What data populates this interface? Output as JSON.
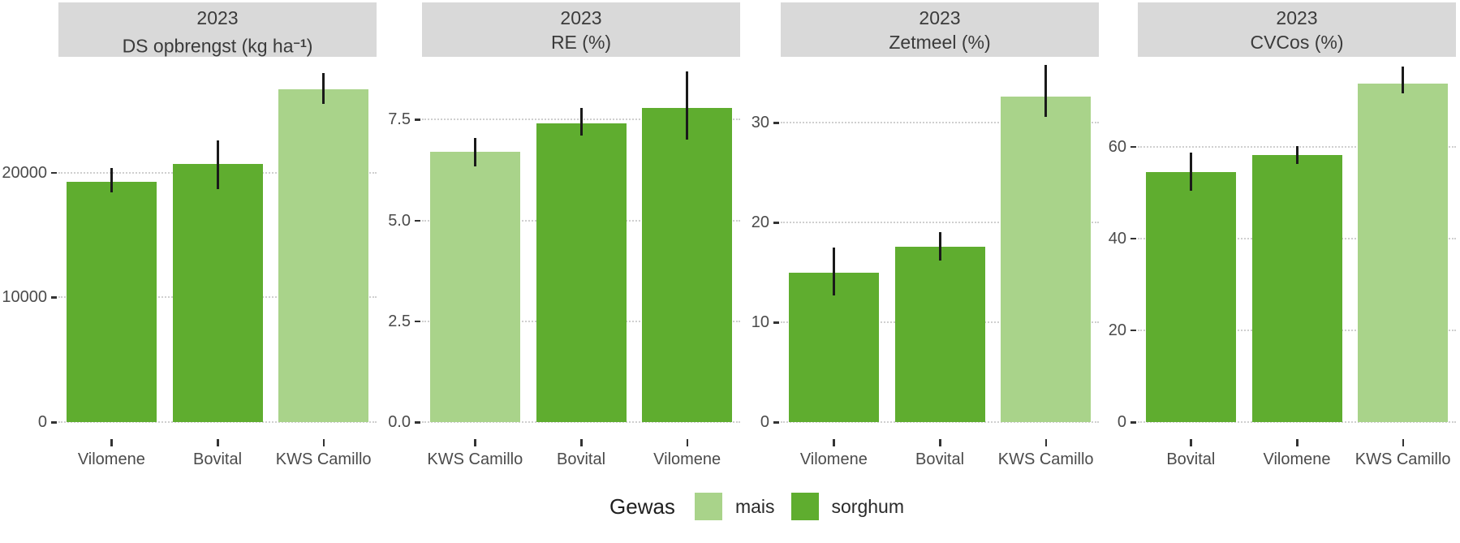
{
  "legend": {
    "title": "Gewas",
    "items": [
      {
        "label": "mais",
        "color": "#a9d38a"
      },
      {
        "label": "sorghum",
        "color": "#5fad2f"
      }
    ]
  },
  "colors": {
    "mais": "#a9d38a",
    "sorghum": "#5fad2f",
    "strip_bg": "#d9d9d9",
    "strip_text": "#3b3b3b",
    "axis_text": "#4b4b4b",
    "gridline": "#cfcfcf",
    "error_bar": "#1a1a1a"
  },
  "chart_data": [
    {
      "type": "bar",
      "strip": {
        "year": "2023",
        "measure_pre": "DS opbrengst (kg ha",
        "measure_sup": "−1",
        "measure_post": ")"
      },
      "categories": [
        "Vilomene",
        "Bovital",
        "KWS Camillo"
      ],
      "groups": [
        "sorghum",
        "sorghum",
        "mais"
      ],
      "values": [
        19300,
        20700,
        26700
      ],
      "error_low": [
        18400,
        18700,
        25500
      ],
      "error_high": [
        20400,
        22600,
        28000
      ],
      "yticks": [
        {
          "v": 0,
          "label": "0"
        },
        {
          "v": 10000,
          "label": "10000"
        },
        {
          "v": 20000,
          "label": "20000"
        }
      ],
      "ylim": [
        0,
        29300
      ],
      "grid": "dotted",
      "legend_position": "bottom"
    },
    {
      "type": "bar",
      "strip": {
        "year": "2023",
        "measure_pre": "RE (%)",
        "measure_sup": "",
        "measure_post": ""
      },
      "categories": [
        "KWS Camillo",
        "Bovital",
        "Vilomene"
      ],
      "groups": [
        "mais",
        "sorghum",
        "sorghum"
      ],
      "values": [
        6.7,
        7.4,
        7.8
      ],
      "error_low": [
        6.35,
        7.1,
        7.0
      ],
      "error_high": [
        7.05,
        7.8,
        8.7
      ],
      "yticks": [
        {
          "v": 0,
          "label": "0.0"
        },
        {
          "v": 2.5,
          "label": "2.5"
        },
        {
          "v": 5.0,
          "label": "5.0"
        },
        {
          "v": 7.5,
          "label": "7.5"
        }
      ],
      "ylim": [
        0,
        9.06
      ],
      "grid": "dotted",
      "legend_position": "bottom"
    },
    {
      "type": "bar",
      "strip": {
        "year": "2023",
        "measure_pre": "Zetmeel (%)",
        "measure_sup": "",
        "measure_post": ""
      },
      "categories": [
        "Vilomene",
        "Bovital",
        "KWS Camillo"
      ],
      "groups": [
        "sorghum",
        "sorghum",
        "mais"
      ],
      "values": [
        15.0,
        17.6,
        32.6
      ],
      "error_low": [
        12.7,
        16.2,
        30.6
      ],
      "error_high": [
        17.5,
        19.0,
        35.8
      ],
      "yticks": [
        {
          "v": 0,
          "label": "0"
        },
        {
          "v": 10,
          "label": "10"
        },
        {
          "v": 20,
          "label": "20"
        },
        {
          "v": 30,
          "label": "30"
        }
      ],
      "ylim": [
        0,
        36.6
      ],
      "grid": "dotted",
      "legend_position": "bottom"
    },
    {
      "type": "bar",
      "strip": {
        "year": "2023",
        "measure_pre": "CVCos (%)",
        "measure_sup": "",
        "measure_post": ""
      },
      "categories": [
        "Bovital",
        "Vilomene",
        "KWS Camillo"
      ],
      "groups": [
        "sorghum",
        "sorghum",
        "mais"
      ],
      "values": [
        54.5,
        58.2,
        73.8
      ],
      "error_low": [
        50.4,
        56.2,
        71.7
      ],
      "error_high": [
        58.7,
        60.1,
        77.5
      ],
      "yticks": [
        {
          "v": 0,
          "label": "0"
        },
        {
          "v": 20,
          "label": "20"
        },
        {
          "v": 40,
          "label": "40"
        },
        {
          "v": 60,
          "label": "60"
        }
      ],
      "ylim": [
        0,
        79.6
      ],
      "grid": "dotted",
      "legend_position": "bottom"
    }
  ]
}
